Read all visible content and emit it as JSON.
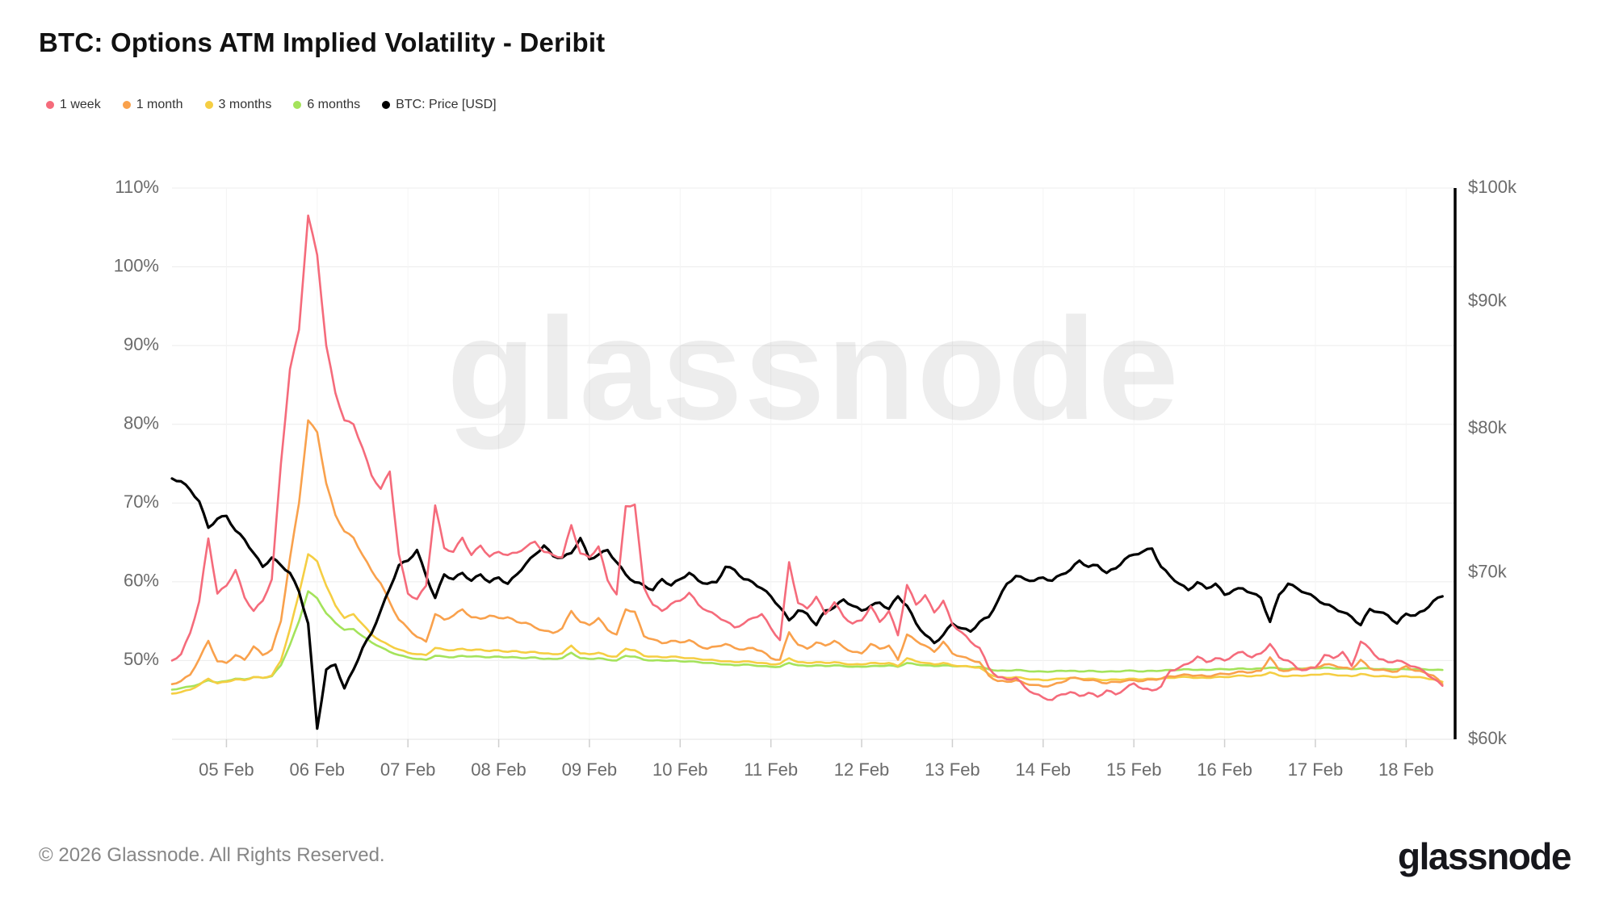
{
  "header": {
    "title": "BTC: Options ATM Implied Volatility - Deribit"
  },
  "watermark": {
    "text": "glassnode"
  },
  "footer": {
    "copyright": "© 2026 Glassnode. All Rights Reserved.",
    "brand": "glassnode"
  },
  "chart_data": {
    "type": "line",
    "title": "BTC: Options ATM Implied Volatility - Deribit",
    "legend_position": "top-left",
    "grid": true,
    "x_axis": {
      "unit": "date",
      "domain_days": [
        4.4,
        18.54
      ],
      "tick_days": [
        5,
        6,
        7,
        8,
        9,
        10,
        11,
        12,
        13,
        14,
        15,
        16,
        17,
        18
      ],
      "tick_labels": [
        "05 Feb",
        "06 Feb",
        "07 Feb",
        "08 Feb",
        "09 Feb",
        "10 Feb",
        "11 Feb",
        "12 Feb",
        "13 Feb",
        "14 Feb",
        "15 Feb",
        "16 Feb",
        "17 Feb",
        "18 Feb"
      ]
    },
    "y_axis_left": {
      "unit": "percent",
      "scale": "linear",
      "domain": [
        40,
        110
      ],
      "tick_values": [
        110,
        100,
        90,
        80,
        70,
        60,
        50
      ],
      "tick_labels": [
        "110%",
        "100%",
        "90%",
        "80%",
        "70%",
        "60%",
        "50%"
      ]
    },
    "y_axis_right": {
      "unit": "USD",
      "scale": "log",
      "domain_k": [
        60,
        100
      ],
      "tick_values_k": [
        100,
        90,
        80,
        70,
        60
      ],
      "tick_labels": [
        "$100k",
        "$90k",
        "$80k",
        "$70k",
        "$60k"
      ],
      "axis_line_color": "#000000"
    },
    "sampling": {
      "t0_day": 4.4,
      "dt_day": 0.1,
      "points": 141
    },
    "series": [
      {
        "name": "1 week",
        "axis": "left",
        "unit": "percent",
        "color": "#F56B7B",
        "values": [
          50.0,
          50.8,
          53.5,
          57.5,
          65.5,
          58.5,
          59.5,
          61.5,
          58.0,
          56.3,
          57.6,
          60.3,
          75.0,
          87.0,
          92.0,
          106.5,
          101.5,
          90.0,
          84.0,
          80.5,
          80.0,
          77.0,
          73.5,
          71.8,
          74.0,
          63.5,
          58.5,
          57.8,
          59.5,
          69.7,
          64.3,
          63.8,
          65.6,
          63.4,
          64.6,
          63.2,
          63.8,
          63.4,
          63.7,
          64.4,
          65.1,
          63.8,
          63.4,
          63.1,
          67.2,
          63.6,
          63.1,
          64.5,
          60.2,
          58.4,
          69.6,
          69.8,
          59.3,
          57.1,
          56.3,
          57.2,
          57.6,
          58.6,
          57.1,
          56.3,
          55.7,
          55.0,
          54.2,
          54.7,
          55.4,
          55.9,
          54.1,
          52.6,
          62.5,
          57.3,
          56.6,
          58.1,
          55.9,
          57.4,
          55.6,
          54.7,
          55.1,
          56.9,
          54.9,
          56.3,
          53.2,
          59.6,
          57.1,
          58.3,
          56.1,
          57.6,
          54.6,
          53.6,
          52.4,
          51.6,
          49.1,
          47.9,
          47.6,
          47.8,
          46.6,
          45.8,
          45.3,
          45.0,
          45.7,
          46.0,
          45.5,
          45.9,
          45.4,
          46.2,
          45.7,
          46.4,
          47.1,
          46.4,
          46.2,
          46.7,
          48.7,
          49.1,
          49.6,
          50.5,
          49.8,
          50.3,
          50.0,
          50.7,
          51.1,
          50.4,
          50.9,
          52.1,
          50.4,
          50.0,
          49.0,
          48.8,
          49.1,
          50.7,
          50.3,
          51.1,
          49.3,
          52.4,
          51.5,
          50.2,
          49.8,
          50.0,
          49.6,
          49.2,
          48.6,
          47.7,
          46.8
        ]
      },
      {
        "name": "1 month",
        "axis": "left",
        "unit": "percent",
        "color": "#F9A14C",
        "values": [
          47.0,
          47.4,
          48.2,
          50.2,
          52.5,
          49.9,
          49.7,
          50.7,
          50.1,
          51.8,
          50.7,
          51.4,
          55.0,
          63.0,
          70.0,
          80.5,
          79.0,
          72.5,
          68.5,
          66.4,
          65.6,
          63.4,
          61.4,
          59.8,
          57.4,
          55.2,
          54.1,
          53.0,
          52.4,
          55.9,
          55.2,
          55.7,
          56.5,
          55.5,
          55.3,
          55.7,
          55.4,
          55.5,
          54.9,
          54.8,
          54.2,
          53.8,
          53.5,
          54.1,
          56.3,
          54.9,
          54.5,
          55.4,
          53.9,
          53.3,
          56.5,
          56.2,
          53.1,
          52.7,
          52.2,
          52.5,
          52.3,
          52.6,
          51.9,
          51.5,
          51.8,
          52.1,
          51.6,
          51.4,
          51.6,
          51.2,
          50.3,
          50.1,
          53.6,
          52.0,
          51.5,
          52.3,
          51.9,
          52.5,
          51.7,
          51.1,
          50.9,
          52.1,
          51.5,
          51.9,
          50.1,
          53.3,
          52.5,
          51.9,
          51.1,
          52.4,
          50.9,
          50.5,
          50.1,
          49.8,
          48.1,
          47.4,
          47.3,
          47.5,
          47.1,
          46.9,
          46.7,
          46.9,
          47.2,
          47.8,
          47.7,
          47.5,
          47.4,
          47.1,
          47.3,
          47.4,
          47.5,
          47.4,
          47.6,
          47.7,
          48.0,
          48.1,
          48.2,
          48.1,
          48.0,
          48.2,
          48.3,
          48.4,
          48.6,
          48.5,
          48.7,
          50.4,
          48.8,
          48.7,
          48.9,
          49.0,
          49.1,
          49.5,
          49.4,
          49.1,
          48.9,
          50.1,
          49.0,
          48.8,
          48.7,
          48.6,
          49.3,
          48.7,
          48.5,
          48.1,
          47.0
        ]
      },
      {
        "name": "3 months",
        "axis": "left",
        "unit": "percent",
        "color": "#F5CE43",
        "values": [
          45.8,
          46.0,
          46.3,
          46.9,
          47.7,
          47.1,
          47.3,
          47.6,
          47.5,
          47.9,
          47.8,
          48.1,
          50.0,
          54.0,
          58.5,
          63.5,
          62.6,
          59.5,
          57.0,
          55.4,
          55.9,
          54.6,
          53.3,
          52.5,
          51.9,
          51.4,
          51.0,
          50.8,
          50.7,
          51.6,
          51.4,
          51.3,
          51.5,
          51.3,
          51.4,
          51.2,
          51.3,
          51.1,
          51.2,
          51.0,
          51.1,
          50.9,
          50.8,
          50.9,
          51.9,
          50.9,
          50.8,
          51.0,
          50.6,
          50.5,
          51.5,
          51.3,
          50.6,
          50.5,
          50.4,
          50.5,
          50.4,
          50.3,
          50.2,
          50.1,
          50.0,
          49.9,
          49.8,
          49.9,
          49.8,
          49.7,
          49.5,
          49.6,
          50.3,
          49.8,
          49.7,
          49.8,
          49.7,
          49.8,
          49.6,
          49.5,
          49.5,
          49.7,
          49.6,
          49.7,
          49.3,
          50.3,
          49.9,
          49.7,
          49.5,
          49.7,
          49.4,
          49.3,
          49.2,
          49.1,
          48.3,
          47.9,
          47.8,
          47.9,
          47.7,
          47.6,
          47.5,
          47.6,
          47.7,
          47.8,
          47.7,
          47.7,
          47.6,
          47.5,
          47.6,
          47.6,
          47.7,
          47.6,
          47.7,
          47.7,
          47.8,
          47.9,
          47.9,
          47.8,
          47.8,
          47.9,
          47.9,
          48.0,
          48.1,
          48.0,
          48.1,
          48.5,
          48.1,
          48.0,
          48.1,
          48.1,
          48.2,
          48.3,
          48.2,
          48.1,
          48.0,
          48.3,
          48.1,
          48.0,
          48.0,
          47.9,
          48.0,
          47.9,
          47.8,
          47.6,
          47.3
        ]
      },
      {
        "name": "6 months",
        "axis": "left",
        "unit": "percent",
        "color": "#A4E35B",
        "values": [
          46.3,
          46.5,
          46.7,
          47.0,
          47.5,
          47.2,
          47.4,
          47.7,
          47.6,
          47.9,
          47.8,
          48.0,
          49.4,
          52.0,
          55.0,
          58.8,
          57.9,
          56.0,
          54.8,
          53.9,
          54.0,
          53.1,
          52.3,
          51.7,
          51.1,
          50.7,
          50.4,
          50.2,
          50.1,
          50.6,
          50.5,
          50.4,
          50.6,
          50.5,
          50.5,
          50.4,
          50.5,
          50.4,
          50.4,
          50.3,
          50.4,
          50.2,
          50.2,
          50.3,
          51.0,
          50.3,
          50.2,
          50.3,
          50.1,
          50.0,
          50.6,
          50.5,
          50.1,
          50.0,
          50.0,
          50.0,
          49.9,
          49.9,
          49.8,
          49.7,
          49.6,
          49.5,
          49.4,
          49.5,
          49.4,
          49.3,
          49.2,
          49.2,
          49.7,
          49.4,
          49.3,
          49.4,
          49.3,
          49.4,
          49.3,
          49.2,
          49.2,
          49.3,
          49.3,
          49.4,
          49.2,
          49.7,
          49.5,
          49.4,
          49.3,
          49.4,
          49.3,
          49.3,
          49.2,
          49.2,
          48.9,
          48.7,
          48.7,
          48.8,
          48.7,
          48.6,
          48.6,
          48.6,
          48.7,
          48.7,
          48.6,
          48.7,
          48.6,
          48.6,
          48.6,
          48.7,
          48.7,
          48.6,
          48.7,
          48.7,
          48.8,
          48.8,
          48.9,
          48.8,
          48.8,
          48.9,
          48.9,
          48.9,
          49.0,
          48.9,
          49.0,
          49.1,
          49.0,
          48.9,
          49.0,
          49.0,
          49.0,
          49.1,
          49.0,
          49.0,
          48.9,
          49.0,
          49.0,
          48.9,
          48.9,
          48.9,
          48.9,
          48.9,
          48.9,
          48.8,
          48.8
        ]
      },
      {
        "name": "BTC: Price [USD]",
        "axis": "right",
        "unit": "USD_k",
        "color": "#000000",
        "values": [
          76.4,
          76.2,
          75.6,
          74.8,
          73.0,
          73.6,
          73.8,
          72.8,
          72.2,
          71.3,
          70.4,
          71.0,
          70.5,
          70.0,
          68.8,
          66.8,
          60.6,
          64.0,
          64.3,
          62.9,
          64.0,
          65.3,
          66.2,
          67.6,
          69.0,
          70.5,
          70.8,
          71.5,
          69.8,
          68.4,
          69.9,
          69.6,
          70.0,
          69.5,
          69.9,
          69.4,
          69.7,
          69.3,
          69.9,
          70.6,
          71.2,
          71.8,
          71.1,
          71.0,
          71.3,
          72.3,
          70.9,
          71.2,
          71.5,
          70.7,
          69.9,
          69.4,
          69.2,
          68.9,
          69.6,
          69.2,
          69.6,
          70.0,
          69.5,
          69.3,
          69.4,
          70.4,
          70.2,
          69.6,
          69.4,
          69.0,
          68.5,
          67.8,
          67.0,
          67.6,
          67.4,
          66.7,
          67.6,
          67.8,
          68.3,
          67.9,
          67.6,
          67.9,
          68.1,
          67.7,
          68.5,
          67.9,
          66.8,
          66.1,
          65.6,
          66.1,
          66.8,
          66.5,
          66.3,
          66.9,
          67.2,
          68.2,
          69.3,
          69.8,
          69.6,
          69.5,
          69.7,
          69.5,
          69.9,
          70.2,
          70.8,
          70.4,
          70.5,
          70.0,
          70.3,
          70.9,
          71.2,
          71.4,
          71.6,
          70.4,
          69.8,
          69.3,
          68.9,
          69.4,
          69.0,
          69.3,
          68.6,
          68.9,
          69.0,
          68.7,
          68.4,
          66.9,
          68.6,
          69.3,
          69.0,
          68.7,
          68.4,
          68.0,
          67.8,
          67.5,
          67.2,
          66.7,
          67.7,
          67.5,
          67.3,
          66.8,
          67.4,
          67.3,
          67.6,
          68.2,
          68.5
        ]
      }
    ]
  }
}
